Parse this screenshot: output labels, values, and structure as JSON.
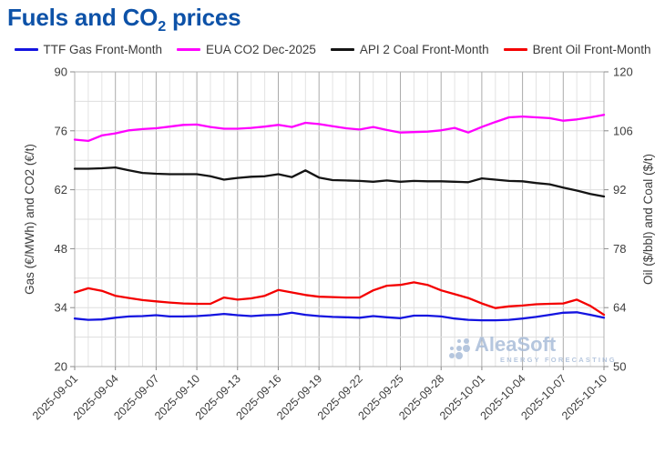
{
  "page": {
    "title_pre": "Fuels and CO",
    "title_sub": "2",
    "title_post": " prices"
  },
  "watermark": {
    "brand": "AleaSoft",
    "tagline": "ENERGY FORECASTING"
  },
  "chart_data": {
    "type": "line",
    "title": "Fuels and CO2 prices",
    "legend_position": "top",
    "grid": "on",
    "x": [
      "2025-09-01",
      "2025-09-02",
      "2025-09-03",
      "2025-09-04",
      "2025-09-05",
      "2025-09-06",
      "2025-09-07",
      "2025-09-08",
      "2025-09-09",
      "2025-09-10",
      "2025-09-11",
      "2025-09-12",
      "2025-09-13",
      "2025-09-14",
      "2025-09-15",
      "2025-09-16",
      "2025-09-17",
      "2025-09-18",
      "2025-09-19",
      "2025-09-20",
      "2025-09-21",
      "2025-09-22",
      "2025-09-23",
      "2025-09-24",
      "2025-09-25",
      "2025-09-26",
      "2025-09-27",
      "2025-09-28",
      "2025-09-29",
      "2025-09-30",
      "2025-10-01",
      "2025-10-02",
      "2025-10-03",
      "2025-10-04",
      "2025-10-05",
      "2025-10-06",
      "2025-10-07",
      "2025-10-08",
      "2025-10-09",
      "2025-10-10"
    ],
    "x_tick_labels": [
      "2025-09-01",
      "2025-09-04",
      "2025-09-07",
      "2025-09-10",
      "2025-09-13",
      "2025-09-16",
      "2025-09-19",
      "2025-09-22",
      "2025-09-25",
      "2025-09-28",
      "2025-10-01",
      "2025-10-04",
      "2025-10-07",
      "2025-10-10"
    ],
    "left_axis": {
      "label": "Gas (€/MWh) and CO2 (€/t)",
      "ticks": [
        20,
        34,
        48,
        62,
        76,
        90
      ],
      "range": [
        20,
        90
      ]
    },
    "right_axis": {
      "label": "Oil ($/bbl) and Coal ($/t)",
      "ticks": [
        50,
        64,
        78,
        92,
        106,
        120
      ],
      "range": [
        50,
        120
      ]
    },
    "series": [
      {
        "name": "TTF Gas Front-Month",
        "axis": "left",
        "unit": "€/MWh",
        "color": "#1414e0",
        "values": [
          31.4,
          31.1,
          31.2,
          31.6,
          31.9,
          32.0,
          32.2,
          31.9,
          31.9,
          32.0,
          32.2,
          32.5,
          32.2,
          32.0,
          32.2,
          32.3,
          32.8,
          32.3,
          32.0,
          31.8,
          31.7,
          31.6,
          32.0,
          31.7,
          31.5,
          32.1,
          32.1,
          31.9,
          31.4,
          31.1,
          31.0,
          31.0,
          31.1,
          31.4,
          31.8,
          32.3,
          32.8,
          32.9,
          32.3,
          31.6
        ]
      },
      {
        "name": "EUA CO2 Dec-2025",
        "axis": "left",
        "unit": "€/t",
        "color": "#ff00ff",
        "values": [
          73.9,
          73.6,
          74.9,
          75.4,
          76.1,
          76.4,
          76.6,
          77.0,
          77.4,
          77.5,
          76.9,
          76.5,
          76.5,
          76.7,
          77.0,
          77.4,
          76.9,
          77.9,
          77.6,
          77.1,
          76.6,
          76.3,
          76.9,
          76.2,
          75.6,
          75.7,
          75.8,
          76.1,
          76.7,
          75.6,
          76.9,
          78.1,
          79.2,
          79.4,
          79.2,
          79.0,
          78.4,
          78.7,
          79.2,
          79.8
        ]
      },
      {
        "name": "API 2 Coal Front-Month",
        "axis": "right",
        "unit": "$/t",
        "color": "#141414",
        "values": [
          97.0,
          97.0,
          97.1,
          97.3,
          96.6,
          96.0,
          95.8,
          95.7,
          95.7,
          95.7,
          95.2,
          94.4,
          94.8,
          95.1,
          95.2,
          95.7,
          95.0,
          96.6,
          94.9,
          94.3,
          94.2,
          94.1,
          93.9,
          94.2,
          93.9,
          94.1,
          94.0,
          94.0,
          93.9,
          93.8,
          94.7,
          94.4,
          94.1,
          94.0,
          93.6,
          93.3,
          92.5,
          91.8,
          91.0,
          90.4
        ]
      },
      {
        "name": "Brent Oil Front-Month",
        "axis": "right",
        "unit": "$/bbl",
        "color": "#f40000",
        "values": [
          67.6,
          68.6,
          68.0,
          66.8,
          66.3,
          65.8,
          65.5,
          65.2,
          65.0,
          64.9,
          64.9,
          66.4,
          65.9,
          66.2,
          66.8,
          68.2,
          67.6,
          67.0,
          66.6,
          66.5,
          66.4,
          66.4,
          68.1,
          69.2,
          69.4,
          70.0,
          69.4,
          68.1,
          67.2,
          66.3,
          65.0,
          63.9,
          64.3,
          64.5,
          64.8,
          64.9,
          65.0,
          65.9,
          64.4,
          62.3
        ]
      }
    ]
  }
}
